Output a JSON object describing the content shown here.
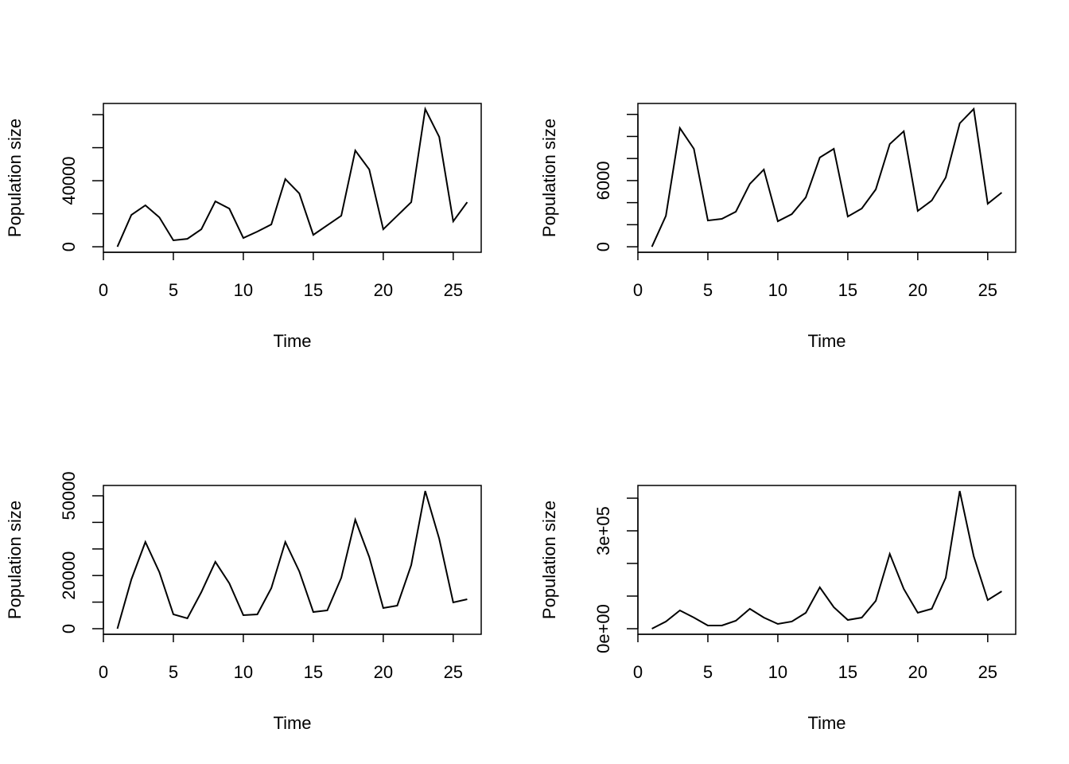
{
  "chart_data": [
    {
      "type": "line",
      "xlabel": "Time",
      "ylabel": "Population size",
      "x": [
        1,
        2,
        3,
        4,
        5,
        6,
        7,
        8,
        9,
        10,
        11,
        12,
        13,
        14,
        15,
        16,
        17,
        18,
        19,
        20,
        21,
        22,
        23,
        24,
        25,
        26
      ],
      "series": [
        {
          "color": "#000000",
          "values": [
            0,
            19300,
            25100,
            17800,
            3900,
            4800,
            10600,
            27500,
            23100,
            5300,
            9200,
            13500,
            41000,
            32300,
            7200,
            13000,
            18800,
            58300,
            46800,
            10600,
            18800,
            27000,
            83400,
            66500,
            15400,
            27000
          ]
        }
      ],
      "xlim": [
        0,
        27
      ],
      "xticks": [
        0,
        5,
        10,
        15,
        20,
        25
      ],
      "ylim": [
        -3340,
        86780
      ],
      "yticks": [
        0,
        {
          "value": 20000,
          "label": null
        },
        40000,
        {
          "value": 60000,
          "label": null
        },
        {
          "value": 80000,
          "label": null
        }
      ]
    },
    {
      "type": "line",
      "xlabel": "Time",
      "ylabel": "Population size",
      "x": [
        1,
        2,
        3,
        4,
        5,
        6,
        7,
        8,
        9,
        10,
        11,
        12,
        13,
        14,
        15,
        16,
        17,
        18,
        19,
        20,
        21,
        22,
        23,
        24,
        25,
        26
      ],
      "series": [
        {
          "color": "#000000",
          "values": [
            0,
            2800,
            10760,
            8880,
            2380,
            2530,
            3180,
            5700,
            7000,
            2310,
            2960,
            4480,
            8090,
            8880,
            2740,
            3470,
            5200,
            9310,
            10470,
            3250,
            4190,
            6280,
            11190,
            12490,
            3900,
            4910
          ]
        }
      ],
      "xlim": [
        0,
        27
      ],
      "xticks": [
        0,
        5,
        10,
        15,
        20,
        25
      ],
      "ylim": [
        -500,
        12990
      ],
      "yticks": [
        0,
        {
          "value": 2000,
          "label": null
        },
        {
          "value": 4000,
          "label": null
        },
        6000,
        {
          "value": 8000,
          "label": null
        },
        {
          "value": 10000,
          "label": null
        },
        {
          "value": 12000,
          "label": null
        }
      ]
    },
    {
      "type": "line",
      "xlabel": "Time",
      "ylabel": "Population size",
      "x": [
        1,
        2,
        3,
        4,
        5,
        6,
        7,
        8,
        9,
        10,
        11,
        12,
        13,
        14,
        15,
        16,
        17,
        18,
        19,
        20,
        21,
        22,
        23,
        24,
        25,
        26
      ],
      "series": [
        {
          "color": "#000000",
          "values": [
            0,
            18560,
            32640,
            21260,
            5390,
            3890,
            13770,
            25150,
            17070,
            5090,
            5390,
            15270,
            32640,
            21560,
            6290,
            6890,
            19160,
            41020,
            26950,
            7780,
            8680,
            23950,
            51800,
            33830,
            9880,
            11080
          ]
        }
      ],
      "xlim": [
        0,
        27
      ],
      "xticks": [
        0,
        5,
        10,
        15,
        20,
        25
      ],
      "ylim": [
        -2100,
        53890
      ],
      "yticks": [
        0,
        {
          "value": 10000,
          "label": null
        },
        20000,
        {
          "value": 30000,
          "label": null
        },
        {
          "value": 40000,
          "label": null
        },
        50000
      ]
    },
    {
      "type": "line",
      "xlabel": "Time",
      "ylabel": "Population size",
      "x": [
        1,
        2,
        3,
        4,
        5,
        6,
        7,
        8,
        9,
        10,
        11,
        12,
        13,
        14,
        15,
        16,
        17,
        18,
        19,
        20,
        21,
        22,
        23,
        24,
        25,
        26
      ],
      "series": [
        {
          "color": "#000000",
          "values": [
            0,
            22000,
            56100,
            34100,
            9800,
            9800,
            24400,
            61000,
            34100,
            14600,
            22000,
            48800,
            126800,
            65900,
            26800,
            34100,
            85400,
            229300,
            122000,
            48800,
            61000,
            156100,
            421900,
            222000,
            87800,
            114600
          ]
        }
      ],
      "xlim": [
        0,
        27
      ],
      "xticks": [
        0,
        5,
        10,
        15,
        20,
        25
      ],
      "ylim": [
        -17070,
        439000
      ],
      "yticks": [
        {
          "value": 0,
          "label": "0e+00"
        },
        {
          "value": 100000,
          "label": null
        },
        {
          "value": 200000,
          "label": null
        },
        {
          "value": 300000,
          "label": "3e+05"
        },
        {
          "value": 400000,
          "label": null
        }
      ]
    }
  ]
}
